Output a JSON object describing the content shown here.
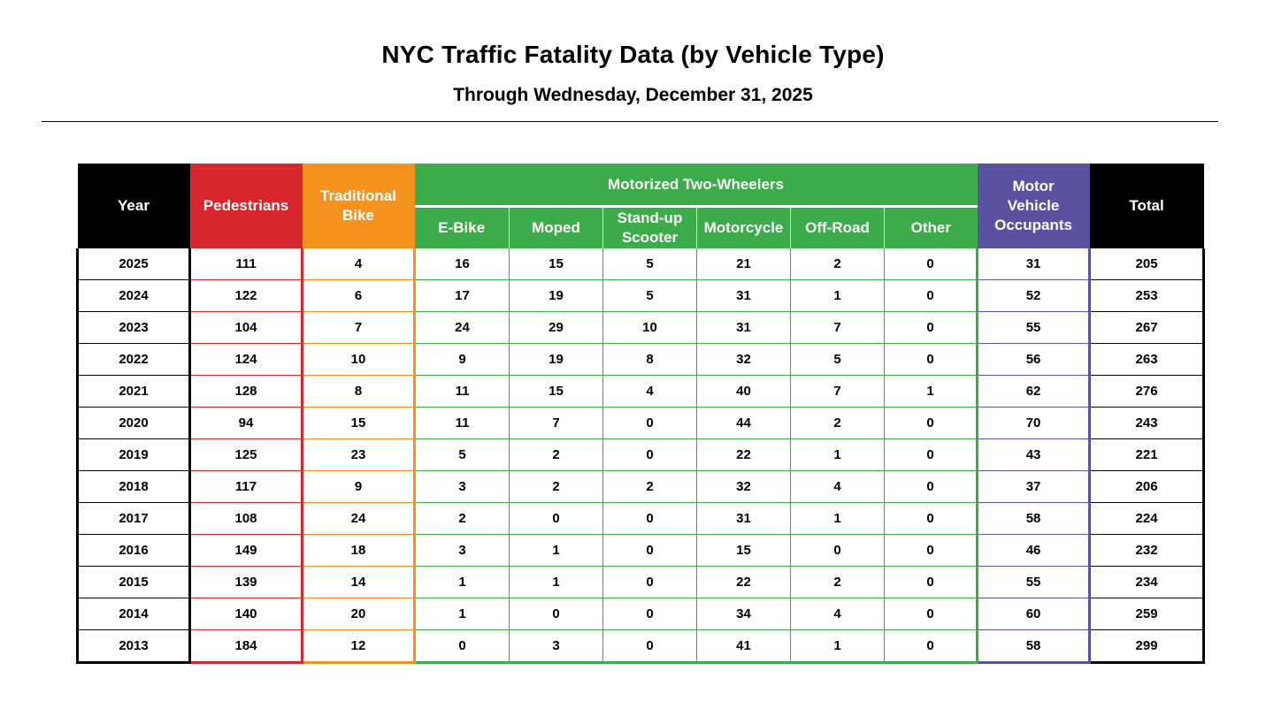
{
  "title": "NYC Traffic Fatality Data (by Vehicle Type)",
  "subtitle": "Through Wednesday, December 31, 2025",
  "colors": {
    "year": "#000000",
    "pedestrians": "#d7262e",
    "traditional_bike": "#f5921e",
    "motorized_two_wheelers": "#3cab49",
    "motor_vehicle_occupants": "#5a52a0",
    "total": "#000000"
  },
  "headers": {
    "year": "Year",
    "pedestrians": "Pedestrians",
    "traditional_bike": "Traditional Bike",
    "motorized_group": "Motorized Two-Wheelers",
    "ebike": "E-Bike",
    "moped": "Moped",
    "scooter": "Stand-up Scooter",
    "motorcycle": "Motorcycle",
    "offroad": "Off-Road",
    "other": "Other",
    "mvo": "Motor Vehicle Occupants",
    "total": "Total"
  },
  "rows": [
    [
      "2025",
      "111",
      "4",
      "16",
      "15",
      "5",
      "21",
      "2",
      "0",
      "31",
      "205"
    ],
    [
      "2024",
      "122",
      "6",
      "17",
      "19",
      "5",
      "31",
      "1",
      "0",
      "52",
      "253"
    ],
    [
      "2023",
      "104",
      "7",
      "24",
      "29",
      "10",
      "31",
      "7",
      "0",
      "55",
      "267"
    ],
    [
      "2022",
      "124",
      "10",
      "9",
      "19",
      "8",
      "32",
      "5",
      "0",
      "56",
      "263"
    ],
    [
      "2021",
      "128",
      "8",
      "11",
      "15",
      "4",
      "40",
      "7",
      "1",
      "62",
      "276"
    ],
    [
      "2020",
      "94",
      "15",
      "11",
      "7",
      "0",
      "44",
      "2",
      "0",
      "70",
      "243"
    ],
    [
      "2019",
      "125",
      "23",
      "5",
      "2",
      "0",
      "22",
      "1",
      "0",
      "43",
      "221"
    ],
    [
      "2018",
      "117",
      "9",
      "3",
      "2",
      "2",
      "32",
      "4",
      "0",
      "37",
      "206"
    ],
    [
      "2017",
      "108",
      "24",
      "2",
      "0",
      "0",
      "31",
      "1",
      "0",
      "58",
      "224"
    ],
    [
      "2016",
      "149",
      "18",
      "3",
      "1",
      "0",
      "15",
      "0",
      "0",
      "46",
      "232"
    ],
    [
      "2015",
      "139",
      "14",
      "1",
      "1",
      "0",
      "22",
      "2",
      "0",
      "55",
      "234"
    ],
    [
      "2014",
      "140",
      "20",
      "1",
      "0",
      "0",
      "34",
      "4",
      "0",
      "60",
      "259"
    ],
    [
      "2013",
      "184",
      "12",
      "0",
      "3",
      "0",
      "41",
      "1",
      "0",
      "58",
      "299"
    ]
  ]
}
